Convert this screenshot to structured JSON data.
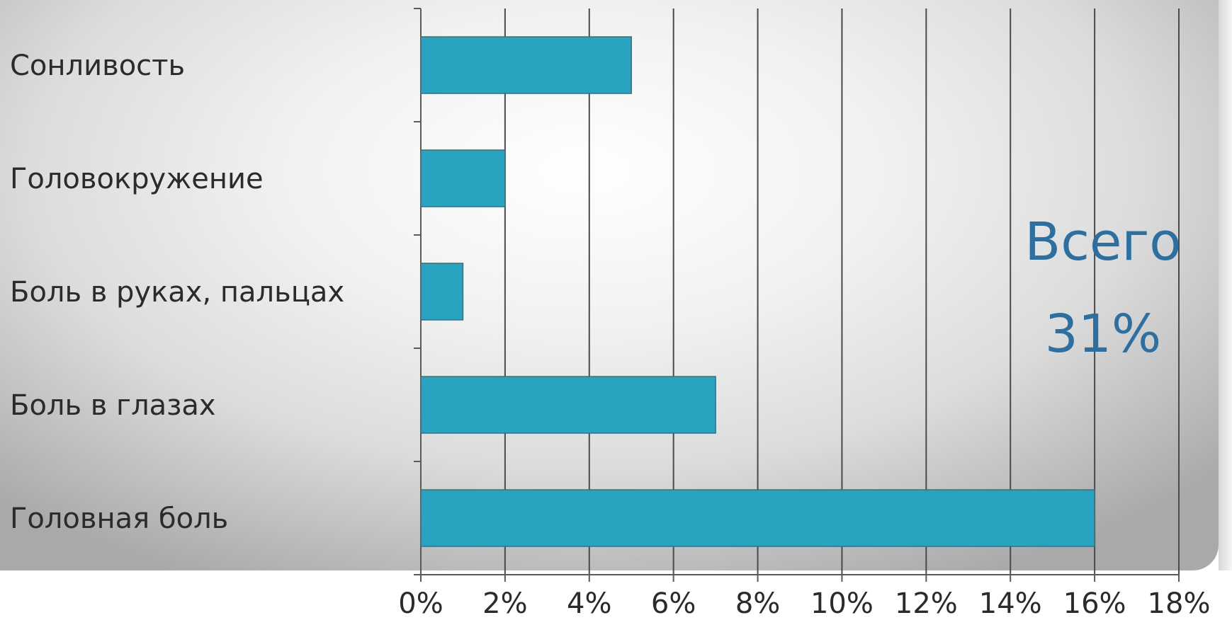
{
  "chart_data": {
    "type": "bar",
    "orientation": "horizontal",
    "categories": [
      "Сонливость",
      "Головокружение",
      "Боль в руках, пальцах",
      "Боль в глазах",
      "Головная боль"
    ],
    "values": [
      5,
      2,
      1,
      7,
      16
    ],
    "x_ticks": [
      "0%",
      "2%",
      "4%",
      "6%",
      "8%",
      "10%",
      "12%",
      "14%",
      "16%",
      "18%"
    ],
    "xlim": [
      0,
      18
    ],
    "grid": true,
    "bar_color": "#2aa3c0",
    "annotation": {
      "line1": "Всего",
      "line2": "31%",
      "color": "#2f6f9f"
    }
  }
}
